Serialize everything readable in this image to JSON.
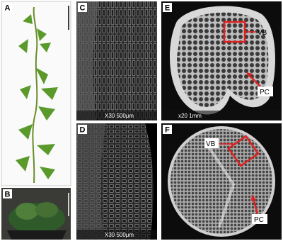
{
  "panels": [
    {
      "label": "A"
    },
    {
      "label": "B"
    },
    {
      "label": "C",
      "scale_text": "X30 500μm"
    },
    {
      "label": "D",
      "scale_text": "X30 500μm"
    },
    {
      "label": "E",
      "scale_text": "x20 1mm",
      "annotations": [
        "VB",
        "PC"
      ]
    },
    {
      "label": "F",
      "annotations": [
        "VB",
        "PC"
      ]
    }
  ]
}
